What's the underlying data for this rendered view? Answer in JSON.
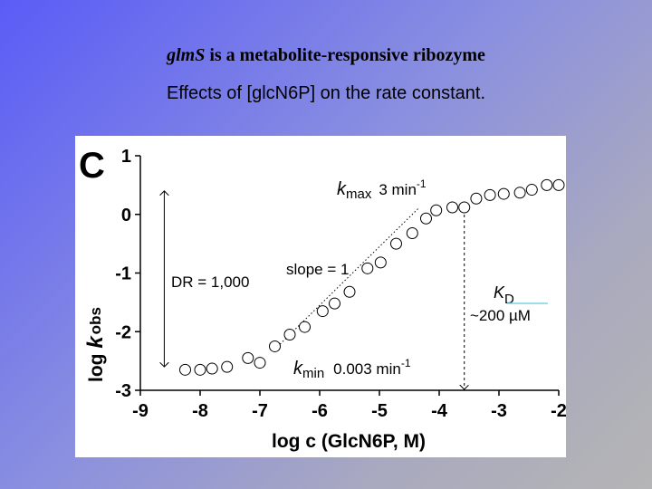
{
  "slide": {
    "title_gene": "glmS",
    "title_rest": " is a metabolite-responsive ribozyme",
    "subtitle": "Effects of [glcN6P] on the rate constant."
  },
  "chart_data": {
    "type": "scatter",
    "panel_label": "C",
    "xlabel": "log c (GlcN6P, M)",
    "ylabel_prefix": "log ",
    "ylabel_k": "k",
    "ylabel_sub": "obs",
    "xlim": [
      -9,
      -2
    ],
    "ylim": [
      -3,
      1
    ],
    "xticks": [
      "-9",
      "-8",
      "-7",
      "-6",
      "-5",
      "-4",
      "-3",
      "-2"
    ],
    "yticks": [
      "1",
      "0",
      "-1",
      "-2",
      "-3"
    ],
    "grid": false,
    "points": [
      {
        "x": -8.25,
        "y": -2.65
      },
      {
        "x": -8.0,
        "y": -2.65
      },
      {
        "x": -7.8,
        "y": -2.63
      },
      {
        "x": -7.55,
        "y": -2.6
      },
      {
        "x": -7.2,
        "y": -2.45
      },
      {
        "x": -7.0,
        "y": -2.53
      },
      {
        "x": -6.75,
        "y": -2.25
      },
      {
        "x": -6.5,
        "y": -2.05
      },
      {
        "x": -6.25,
        "y": -1.92
      },
      {
        "x": -5.95,
        "y": -1.65
      },
      {
        "x": -5.75,
        "y": -1.52
      },
      {
        "x": -5.5,
        "y": -1.32
      },
      {
        "x": -5.2,
        "y": -0.92
      },
      {
        "x": -4.98,
        "y": -0.82
      },
      {
        "x": -4.72,
        "y": -0.5
      },
      {
        "x": -4.45,
        "y": -0.32
      },
      {
        "x": -4.22,
        "y": -0.07
      },
      {
        "x": -4.05,
        "y": 0.07
      },
      {
        "x": -3.78,
        "y": 0.12
      },
      {
        "x": -3.58,
        "y": 0.12
      },
      {
        "x": -3.38,
        "y": 0.27
      },
      {
        "x": -3.15,
        "y": 0.33
      },
      {
        "x": -2.92,
        "y": 0.35
      },
      {
        "x": -2.65,
        "y": 0.37
      },
      {
        "x": -2.45,
        "y": 0.42
      },
      {
        "x": -2.2,
        "y": 0.5
      },
      {
        "x": -2.0,
        "y": 0.5
      }
    ],
    "slope_line": {
      "x1": -6.75,
      "y1": -2.3,
      "x2": -4.35,
      "y2": 0.1
    },
    "kd_x": -3.58,
    "dr_arrow": {
      "x": -8.6,
      "y_top": 0.4,
      "y_bottom": -2.6
    },
    "annotations": {
      "kmax_k": "k",
      "kmax_sub": "max",
      "kmax_value": "3 min",
      "kmax_exp": "-1",
      "kmin_k": "k",
      "kmin_sub": "min",
      "kmin_value": "0.003 min",
      "kmin_exp": "-1",
      "slope": "slope = 1",
      "dr": "DR = 1,000",
      "kd_k": "K",
      "kd_sub": "D",
      "kd_value": "~200 µM"
    }
  }
}
